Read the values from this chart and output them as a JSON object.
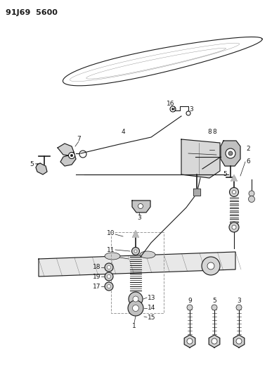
{
  "title": "91J69  5600",
  "bg_color": "#ffffff",
  "line_color": "#1a1a1a",
  "fig_width": 3.97,
  "fig_height": 5.33,
  "dpi": 100
}
